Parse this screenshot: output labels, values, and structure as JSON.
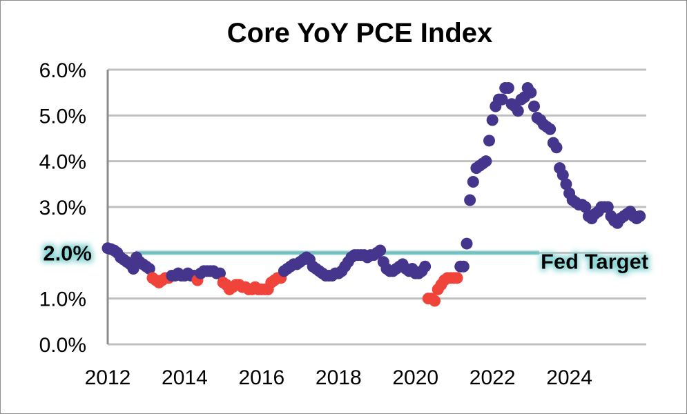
{
  "chart_data": {
    "type": "scatter",
    "title": "Core YoY PCE Index",
    "xlabel": "",
    "ylabel": "",
    "xlim": [
      2012,
      2026
    ],
    "ylim": [
      0,
      6
    ],
    "x_ticks": [
      "2012",
      "2014",
      "2016",
      "2018",
      "2020",
      "2022",
      "2024"
    ],
    "y_ticks": [
      "0.0%",
      "1.0%",
      "2.0%",
      "3.0%",
      "4.0%",
      "5.0%",
      "6.0%"
    ],
    "grid": true,
    "colors": {
      "above_threshold": "#46358c",
      "below_threshold": "#f0443a",
      "target_line": "#5fbfbf"
    },
    "below_threshold_value": 1.5,
    "reference_line": {
      "label": "Fed Target",
      "value": 2.0,
      "axis_label": "2.0%"
    },
    "monthly_series": [
      {
        "year": 2012,
        "values": [
          2.1,
          2.08,
          2.05,
          2.0,
          1.9,
          1.85,
          1.8,
          1.75,
          1.65,
          1.9,
          1.8,
          1.75
        ]
      },
      {
        "year": 2013,
        "values": [
          1.7,
          1.65,
          1.45,
          1.4,
          1.35,
          1.4,
          1.45,
          1.45,
          1.5,
          1.5,
          1.55,
          1.5
        ]
      },
      {
        "year": 2014,
        "values": [
          1.5,
          1.55,
          1.5,
          1.5,
          1.4,
          1.55,
          1.6,
          1.6,
          1.6,
          1.6,
          1.55,
          1.55
        ]
      },
      {
        "year": 2015,
        "values": [
          1.35,
          1.3,
          1.2,
          1.25,
          1.3,
          1.3,
          1.25,
          1.25,
          1.2,
          1.2,
          1.25,
          1.2
        ]
      },
      {
        "year": 2016,
        "values": [
          1.2,
          1.2,
          1.2,
          1.35,
          1.4,
          1.45,
          1.45,
          1.6,
          1.65,
          1.7,
          1.75,
          1.75
        ]
      },
      {
        "year": 2017,
        "values": [
          1.8,
          1.85,
          1.9,
          1.85,
          1.7,
          1.65,
          1.6,
          1.55,
          1.5,
          1.5,
          1.5,
          1.55
        ]
      },
      {
        "year": 2018,
        "values": [
          1.55,
          1.6,
          1.7,
          1.8,
          1.9,
          1.95,
          1.95,
          1.95,
          1.95,
          1.9,
          1.95,
          1.95
        ]
      },
      {
        "year": 2019,
        "values": [
          2.0,
          2.05,
          1.8,
          1.65,
          1.6,
          1.6,
          1.65,
          1.7,
          1.75,
          1.65,
          1.6,
          1.65
        ]
      },
      {
        "year": 2020,
        "values": [
          1.55,
          1.55,
          1.6,
          1.7,
          1.0,
          1.0,
          0.95,
          1.2,
          1.3,
          1.4,
          1.45,
          1.45
        ]
      },
      {
        "year": 2021,
        "values": [
          1.45,
          1.45,
          1.7,
          1.7,
          2.2,
          3.15,
          3.55,
          3.85,
          3.9,
          3.95,
          4.0,
          4.45
        ]
      },
      {
        "year": 2022,
        "values": [
          4.9,
          5.2,
          5.35,
          5.35,
          5.6,
          5.6,
          5.25,
          5.2,
          5.1,
          5.35,
          5.4,
          5.6
        ]
      },
      {
        "year": 2023,
        "values": [
          5.5,
          5.2,
          4.95,
          4.9,
          4.8,
          4.75,
          4.7,
          4.4,
          4.3,
          3.85,
          3.7,
          3.5
        ]
      },
      {
        "year": 2024,
        "values": [
          3.3,
          3.15,
          3.1,
          3.05,
          3.05,
          3.0,
          2.8,
          2.75,
          2.85,
          2.9,
          3.0,
          3.0
        ]
      },
      {
        "year": 2025,
        "values": [
          3.0,
          2.8,
          2.7,
          2.65,
          2.75,
          2.8,
          2.85,
          2.9,
          2.8,
          2.75,
          2.8
        ]
      }
    ]
  }
}
